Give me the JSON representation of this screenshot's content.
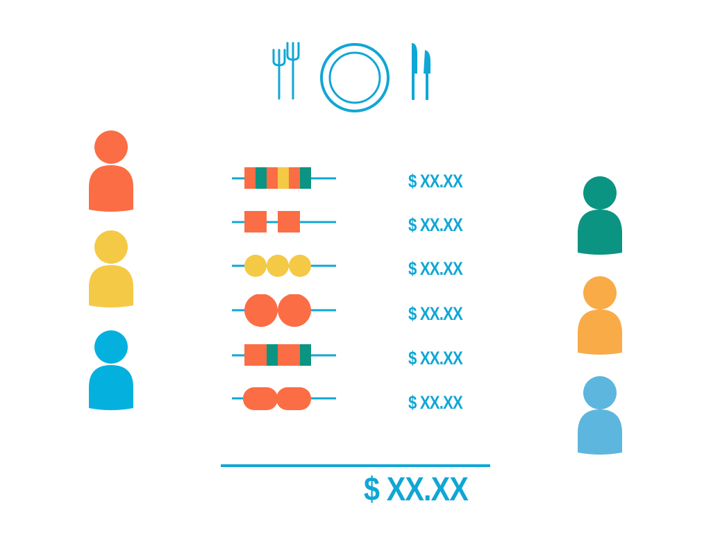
{
  "colors": {
    "accent": "#10a6d6",
    "orange": "#fb6d44",
    "yellow": "#f4c945",
    "teal": "#0b9482",
    "blue": "#04b1de",
    "amber": "#f8ab47",
    "light_blue": "#5db6de"
  },
  "header": {
    "icons": [
      "fork-icon",
      "plate-icon",
      "knife-icon"
    ]
  },
  "people_left": [
    {
      "name": "person-orange",
      "color": "#fb6d44"
    },
    {
      "name": "person-yellow",
      "color": "#f4c945"
    },
    {
      "name": "person-blue",
      "color": "#04b1de"
    }
  ],
  "people_right": [
    {
      "name": "person-teal",
      "color": "#0b9482"
    },
    {
      "name": "person-amber",
      "color": "#f8ab47"
    },
    {
      "name": "person-light-blue",
      "color": "#5db6de"
    }
  ],
  "items": [
    {
      "icon": "striped-skewer-icon",
      "price": "$ XX.XX"
    },
    {
      "icon": "square-skewer-icon",
      "price": "$ XX.XX"
    },
    {
      "icon": "yellow-ball-skewer-icon",
      "price": "$ XX.XX"
    },
    {
      "icon": "meatball-skewer-icon",
      "price": "$ XX.XX"
    },
    {
      "icon": "teal-striped-skewer-icon",
      "price": "$ XX.XX"
    },
    {
      "icon": "sausage-skewer-icon",
      "price": "$ XX.XX"
    }
  ],
  "total": {
    "label": "$ XX.XX"
  }
}
